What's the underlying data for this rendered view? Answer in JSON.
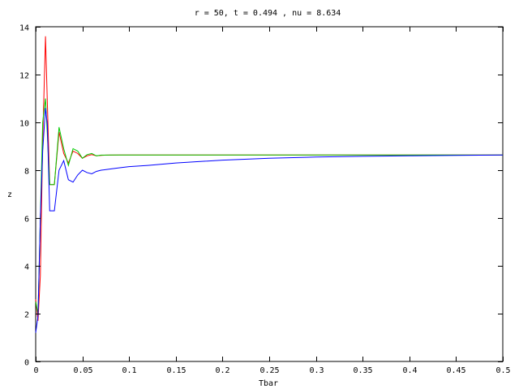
{
  "chart_data": {
    "type": "line",
    "title": "r = 50, t =  0.494 , nu =  8.634",
    "xlabel": "Tbar",
    "ylabel": "z",
    "xlim": [
      0,
      0.5
    ],
    "ylim": [
      0,
      14
    ],
    "xticks": [
      "0",
      "0.05",
      "0.1",
      "0.15",
      "0.2",
      "0.25",
      "0.3",
      "0.35",
      "0.4",
      "0.45",
      "0.5"
    ],
    "xtick_values": [
      0,
      0.05,
      0.1,
      0.15,
      0.2,
      0.25,
      0.3,
      0.35,
      0.4,
      0.45,
      0.5
    ],
    "yticks": [
      "0",
      "2",
      "4",
      "6",
      "8",
      "10",
      "12",
      "14"
    ],
    "ytick_values": [
      0,
      2,
      4,
      6,
      8,
      10,
      12,
      14
    ],
    "grid": false,
    "legend": "none",
    "series": [
      {
        "color": "#ff0000",
        "x": [
          0,
          0.0025,
          0.005,
          0.0075,
          0.0105,
          0.0125,
          0.015,
          0.02,
          0.025,
          0.03,
          0.035,
          0.04,
          0.045,
          0.05,
          0.055,
          0.06,
          0.065,
          0.07,
          0.075,
          0.08,
          0.09,
          0.1,
          0.12,
          0.15,
          0.2,
          0.3,
          0.4,
          0.5
        ],
        "y": [
          2.6,
          1.7,
          3.6,
          9.2,
          13.6,
          10.8,
          7.4,
          7.4,
          9.6,
          8.7,
          8.3,
          8.8,
          8.7,
          8.5,
          8.6,
          8.65,
          8.6,
          8.62,
          8.63,
          8.63,
          8.634,
          8.634,
          8.634,
          8.634,
          8.634,
          8.634,
          8.634,
          8.634
        ]
      },
      {
        "color": "#00cc00",
        "x": [
          0,
          0.0025,
          0.005,
          0.0075,
          0.0105,
          0.0125,
          0.015,
          0.02,
          0.025,
          0.03,
          0.035,
          0.04,
          0.045,
          0.05,
          0.055,
          0.06,
          0.065,
          0.07,
          0.075,
          0.08,
          0.09,
          0.1,
          0.12,
          0.15,
          0.2,
          0.3,
          0.4,
          0.5
        ],
        "y": [
          2.5,
          2.0,
          6.0,
          10.0,
          11.0,
          9.5,
          7.4,
          7.4,
          9.8,
          8.9,
          8.2,
          8.9,
          8.8,
          8.5,
          8.65,
          8.7,
          8.6,
          8.63,
          8.63,
          8.634,
          8.634,
          8.634,
          8.634,
          8.634,
          8.634,
          8.634,
          8.634,
          8.634
        ]
      },
      {
        "color": "#0000ff",
        "x": [
          0,
          0.0025,
          0.005,
          0.0075,
          0.0105,
          0.0125,
          0.015,
          0.02,
          0.025,
          0.03,
          0.035,
          0.04,
          0.045,
          0.05,
          0.055,
          0.06,
          0.065,
          0.07,
          0.08,
          0.09,
          0.1,
          0.12,
          0.15,
          0.2,
          0.25,
          0.3,
          0.35,
          0.4,
          0.45,
          0.5
        ],
        "y": [
          1.2,
          1.9,
          6.0,
          8.8,
          10.6,
          9.9,
          6.3,
          6.3,
          8.0,
          8.4,
          7.6,
          7.5,
          7.8,
          8.0,
          7.9,
          7.85,
          7.95,
          8.0,
          8.05,
          8.1,
          8.15,
          8.2,
          8.3,
          8.42,
          8.5,
          8.55,
          8.58,
          8.6,
          8.62,
          8.634
        ]
      }
    ]
  }
}
